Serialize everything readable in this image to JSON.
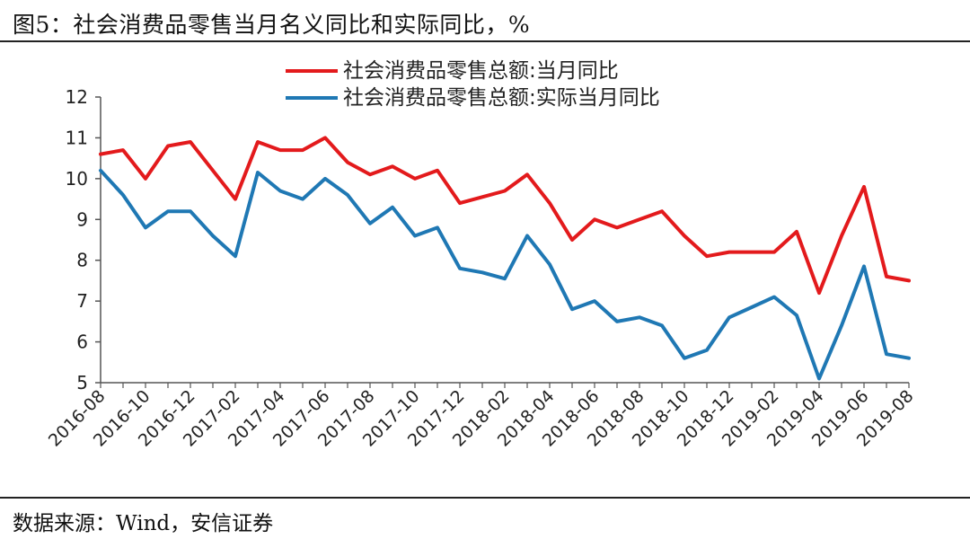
{
  "title": "图5：社会消费品零售当月名义同比和实际同比，%",
  "source": "数据来源：Wind，安信证券",
  "chart_data": {
    "type": "line",
    "title": "图5：社会消费品零售当月名义同比和实际同比，%",
    "xlabel": "",
    "ylabel": "",
    "ylim": [
      5,
      12
    ],
    "yticks": [
      5,
      6,
      7,
      8,
      9,
      10,
      11,
      12
    ],
    "grid": false,
    "legend_position": "top",
    "x": [
      "2016-08",
      "2016-09",
      "2016-10",
      "2016-11",
      "2016-12",
      "2017-01",
      "2017-02",
      "2017-03",
      "2017-04",
      "2017-05",
      "2017-06",
      "2017-07",
      "2017-08",
      "2017-09",
      "2017-10",
      "2017-11",
      "2017-12",
      "2018-01",
      "2018-02",
      "2018-03",
      "2018-04",
      "2018-05",
      "2018-06",
      "2018-07",
      "2018-08",
      "2018-09",
      "2018-10",
      "2018-11",
      "2018-12",
      "2019-01",
      "2019-02",
      "2019-03",
      "2019-04",
      "2019-05",
      "2019-06",
      "2019-07",
      "2019-08"
    ],
    "xtick_labels": [
      "2016-08",
      "2016-10",
      "2016-12",
      "2017-02",
      "2017-04",
      "2017-06",
      "2017-08",
      "2017-10",
      "2017-12",
      "2018-02",
      "2018-04",
      "2018-06",
      "2018-08",
      "2018-10",
      "2018-12",
      "2019-02",
      "2019-04",
      "2019-06",
      "2019-08"
    ],
    "series": [
      {
        "name": "社会消费品零售总额:当月同比",
        "color": "#e31a1c",
        "values": [
          10.6,
          10.7,
          10.0,
          10.8,
          10.9,
          10.2,
          9.5,
          10.9,
          10.7,
          10.7,
          11.0,
          10.4,
          10.1,
          10.3,
          10.0,
          10.2,
          9.4,
          9.55,
          9.7,
          10.1,
          9.4,
          8.5,
          9.0,
          8.8,
          9.0,
          9.2,
          8.6,
          8.1,
          8.2,
          8.2,
          8.2,
          8.7,
          7.2,
          8.6,
          9.8,
          7.6,
          7.5
        ]
      },
      {
        "name": "社会消费品零售总额:实际当月同比",
        "color": "#1f78b4",
        "values": [
          10.2,
          9.6,
          8.8,
          9.2,
          9.2,
          8.6,
          8.1,
          10.15,
          9.7,
          9.5,
          10.0,
          9.6,
          8.9,
          9.3,
          8.6,
          8.8,
          7.8,
          7.7,
          7.55,
          8.6,
          7.9,
          6.8,
          7.0,
          6.5,
          6.6,
          6.4,
          5.6,
          5.8,
          6.6,
          6.85,
          7.1,
          6.65,
          5.1,
          6.4,
          7.85,
          5.7,
          5.6
        ]
      }
    ]
  }
}
